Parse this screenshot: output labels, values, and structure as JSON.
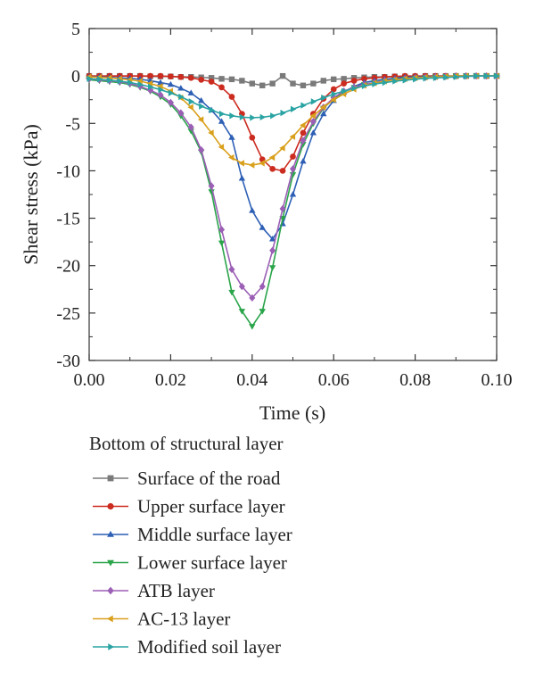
{
  "chart_data": {
    "type": "line",
    "xlabel": "Time (s)",
    "ylabel": "Shear stress (kPa)",
    "xlim": [
      0.0,
      0.1
    ],
    "ylim": [
      -30,
      5
    ],
    "xticks": [
      0.0,
      0.02,
      0.04,
      0.06,
      0.08,
      0.1
    ],
    "xtick_labels": [
      "0.00",
      "0.02",
      "0.04",
      "0.06",
      "0.08",
      "0.10"
    ],
    "yticks": [
      5,
      0,
      -5,
      -10,
      -15,
      -20,
      -25,
      -30
    ],
    "ytick_labels": [
      "5",
      "0",
      "-5",
      "-10",
      "-15",
      "-20",
      "-25",
      "-30"
    ],
    "grid": false,
    "legend_title": "Bottom of structural layer",
    "legend_position": "bottom",
    "x": [
      0.0,
      0.0025,
      0.005,
      0.0075,
      0.01,
      0.0125,
      0.015,
      0.0175,
      0.02,
      0.0225,
      0.025,
      0.0275,
      0.03,
      0.0325,
      0.035,
      0.0375,
      0.04,
      0.0425,
      0.045,
      0.0475,
      0.05,
      0.0525,
      0.055,
      0.0575,
      0.06,
      0.0625,
      0.065,
      0.0675,
      0.07,
      0.0725,
      0.075,
      0.0775,
      0.08,
      0.0825,
      0.085,
      0.0875,
      0.09,
      0.0925,
      0.095,
      0.0975,
      0.1
    ],
    "series": [
      {
        "name": "Surface of the road",
        "color": "#7a7a7a",
        "marker": "square",
        "values": [
          0,
          0,
          0,
          0,
          0,
          0,
          -0.05,
          -0.05,
          -0.05,
          -0.1,
          -0.1,
          -0.15,
          -0.2,
          -0.3,
          -0.35,
          -0.5,
          -0.8,
          -1.0,
          -0.8,
          0,
          -0.8,
          -1.0,
          -0.8,
          -0.5,
          -0.35,
          -0.3,
          -0.2,
          -0.15,
          -0.1,
          -0.1,
          -0.05,
          -0.05,
          -0.05,
          0,
          0,
          0,
          0,
          0,
          0,
          0,
          0
        ]
      },
      {
        "name": "Upper surface layer",
        "color": "#cc2b1f",
        "marker": "circle",
        "values": [
          0,
          0,
          0,
          0,
          0,
          0,
          0,
          0,
          -0.05,
          -0.1,
          -0.2,
          -0.4,
          -0.6,
          -1.2,
          -2.2,
          -4.0,
          -6.5,
          -8.8,
          -9.8,
          -10.0,
          -8.5,
          -6.0,
          -4.0,
          -2.4,
          -1.4,
          -0.8,
          -0.5,
          -0.3,
          -0.2,
          -0.1,
          -0.05,
          0,
          0,
          0,
          0,
          0,
          0,
          0,
          0,
          0,
          0
        ]
      },
      {
        "name": "Middle surface layer",
        "color": "#2d5fb5",
        "marker": "triangle-up",
        "values": [
          -0.1,
          -0.1,
          -0.15,
          -0.2,
          -0.25,
          -0.35,
          -0.5,
          -0.7,
          -0.9,
          -1.3,
          -1.8,
          -2.6,
          -3.6,
          -4.8,
          -6.5,
          -10.8,
          -14.2,
          -16.0,
          -17.2,
          -15.6,
          -12.5,
          -9.0,
          -6.0,
          -4.0,
          -2.6,
          -1.7,
          -1.1,
          -0.7,
          -0.5,
          -0.35,
          -0.25,
          -0.15,
          -0.1,
          -0.1,
          -0.05,
          -0.05,
          0,
          0,
          0,
          0,
          0
        ]
      },
      {
        "name": "Lower surface layer",
        "color": "#2aa54a",
        "marker": "triangle-down",
        "values": [
          -0.4,
          -0.5,
          -0.6,
          -0.7,
          -0.9,
          -1.2,
          -1.6,
          -2.2,
          -3.0,
          -4.2,
          -5.8,
          -8.0,
          -12.2,
          -17.6,
          -22.8,
          -24.8,
          -26.4,
          -24.8,
          -20.2,
          -15.0,
          -10.4,
          -7.2,
          -5.0,
          -3.4,
          -2.4,
          -1.7,
          -1.2,
          -0.9,
          -0.7,
          -0.5,
          -0.4,
          -0.3,
          -0.2,
          -0.15,
          -0.1,
          -0.05,
          0,
          0,
          0,
          0,
          0
        ]
      },
      {
        "name": "ATB layer",
        "color": "#9b5fb5",
        "marker": "diamond",
        "values": [
          -0.3,
          -0.4,
          -0.5,
          -0.6,
          -0.8,
          -1.1,
          -1.5,
          -2.0,
          -2.8,
          -3.9,
          -5.4,
          -7.8,
          -11.6,
          -16.2,
          -20.4,
          -22.2,
          -23.4,
          -22.2,
          -18.4,
          -14.0,
          -9.8,
          -6.8,
          -4.8,
          -3.3,
          -2.3,
          -1.6,
          -1.2,
          -0.9,
          -0.7,
          -0.5,
          -0.4,
          -0.3,
          -0.2,
          -0.15,
          -0.1,
          -0.05,
          0,
          0,
          0,
          0,
          0
        ]
      },
      {
        "name": "AC-13 layer",
        "color": "#d9a01c",
        "marker": "triangle-left",
        "values": [
          -0.1,
          -0.15,
          -0.2,
          -0.3,
          -0.4,
          -0.55,
          -0.8,
          -1.1,
          -1.6,
          -2.3,
          -3.3,
          -4.6,
          -6.0,
          -7.5,
          -8.6,
          -9.2,
          -9.4,
          -9.2,
          -8.6,
          -7.6,
          -6.4,
          -5.2,
          -4.2,
          -3.3,
          -2.5,
          -1.9,
          -1.4,
          -1.0,
          -0.75,
          -0.55,
          -0.4,
          -0.3,
          -0.2,
          -0.15,
          -0.1,
          -0.05,
          0,
          0,
          0,
          0,
          0
        ]
      },
      {
        "name": "Modified soil layer",
        "color": "#2aa3a3",
        "marker": "triangle-right",
        "values": [
          -0.3,
          -0.35,
          -0.45,
          -0.55,
          -0.7,
          -0.9,
          -1.15,
          -1.45,
          -1.8,
          -2.2,
          -2.7,
          -3.2,
          -3.6,
          -4.0,
          -4.2,
          -4.35,
          -4.4,
          -4.35,
          -4.2,
          -3.9,
          -3.5,
          -3.1,
          -2.7,
          -2.3,
          -1.9,
          -1.6,
          -1.3,
          -1.05,
          -0.85,
          -0.7,
          -0.55,
          -0.45,
          -0.35,
          -0.25,
          -0.2,
          -0.15,
          -0.1,
          -0.05,
          0,
          0,
          0
        ]
      }
    ]
  }
}
